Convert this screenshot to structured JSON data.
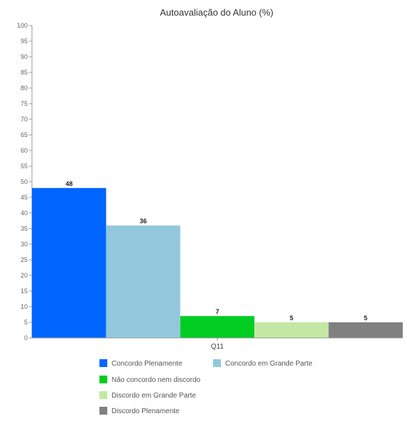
{
  "chart_data": {
    "type": "bar",
    "title": "Autoavaliação do Aluno (%)",
    "xlabel": "",
    "ylabel": "",
    "categories": [
      "Q11"
    ],
    "ylim": [
      0,
      100
    ],
    "yticks": [
      0,
      5,
      10,
      15,
      20,
      25,
      30,
      35,
      40,
      45,
      50,
      55,
      60,
      65,
      70,
      75,
      80,
      85,
      90,
      95,
      100
    ],
    "grid": false,
    "legend_position": "bottom",
    "series": [
      {
        "name": "Concordo Plenamente",
        "values": [
          48
        ],
        "color": "#0066ff"
      },
      {
        "name": "Concordo em Grande Parte",
        "values": [
          36
        ],
        "color": "#93c8dc"
      },
      {
        "name": "Não concordo nem discordo",
        "values": [
          7
        ],
        "color": "#00cc22"
      },
      {
        "name": "Discordo em Grande Parte",
        "values": [
          5
        ],
        "color": "#c4e8a4"
      },
      {
        "name": "Discordo Plenamente",
        "values": [
          5
        ],
        "color": "#808080"
      }
    ],
    "data_labels": [
      "48",
      "36",
      "7",
      "5",
      "5"
    ]
  }
}
